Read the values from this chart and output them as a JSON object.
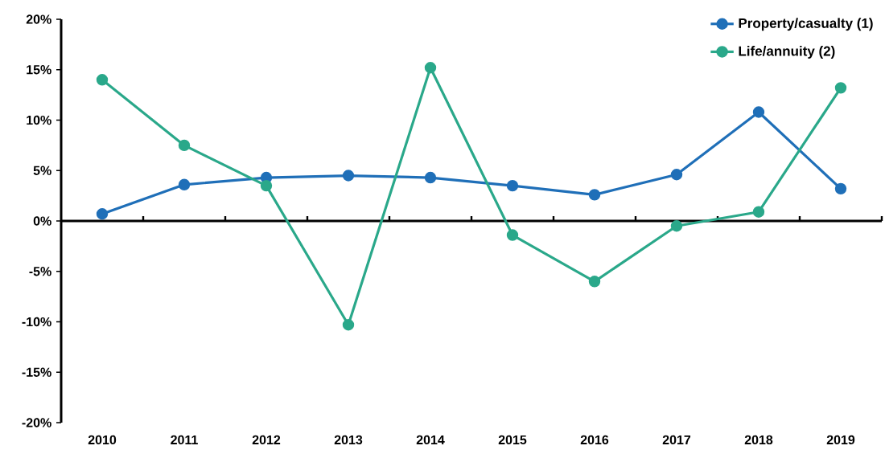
{
  "chart_data": {
    "type": "line",
    "categories": [
      "2010",
      "2011",
      "2012",
      "2013",
      "2014",
      "2015",
      "2016",
      "2017",
      "2018",
      "2019"
    ],
    "series": [
      {
        "name": "Property/casualty (1)",
        "color": "#1f6fb8",
        "values": [
          0.7,
          3.6,
          4.3,
          4.5,
          4.3,
          3.5,
          2.6,
          4.6,
          10.8,
          3.2
        ]
      },
      {
        "name": "Life/annuity (2)",
        "color": "#2aa88a",
        "values": [
          14.0,
          7.5,
          3.5,
          -10.3,
          15.2,
          -1.4,
          -6.0,
          -0.5,
          0.9,
          13.2
        ]
      }
    ],
    "ylim": [
      -20,
      20
    ],
    "yticks": [
      {
        "value": -20,
        "label": "-20%"
      },
      {
        "value": -15,
        "label": "-15%"
      },
      {
        "value": -10,
        "label": "-10%"
      },
      {
        "value": -5,
        "label": "-5%"
      },
      {
        "value": 0,
        "label": "0%"
      },
      {
        "value": 5,
        "label": "5%"
      },
      {
        "value": 10,
        "label": "10%"
      },
      {
        "value": 15,
        "label": "15%"
      },
      {
        "value": 20,
        "label": "20%"
      }
    ],
    "legend": "top right",
    "marker": "circle"
  }
}
